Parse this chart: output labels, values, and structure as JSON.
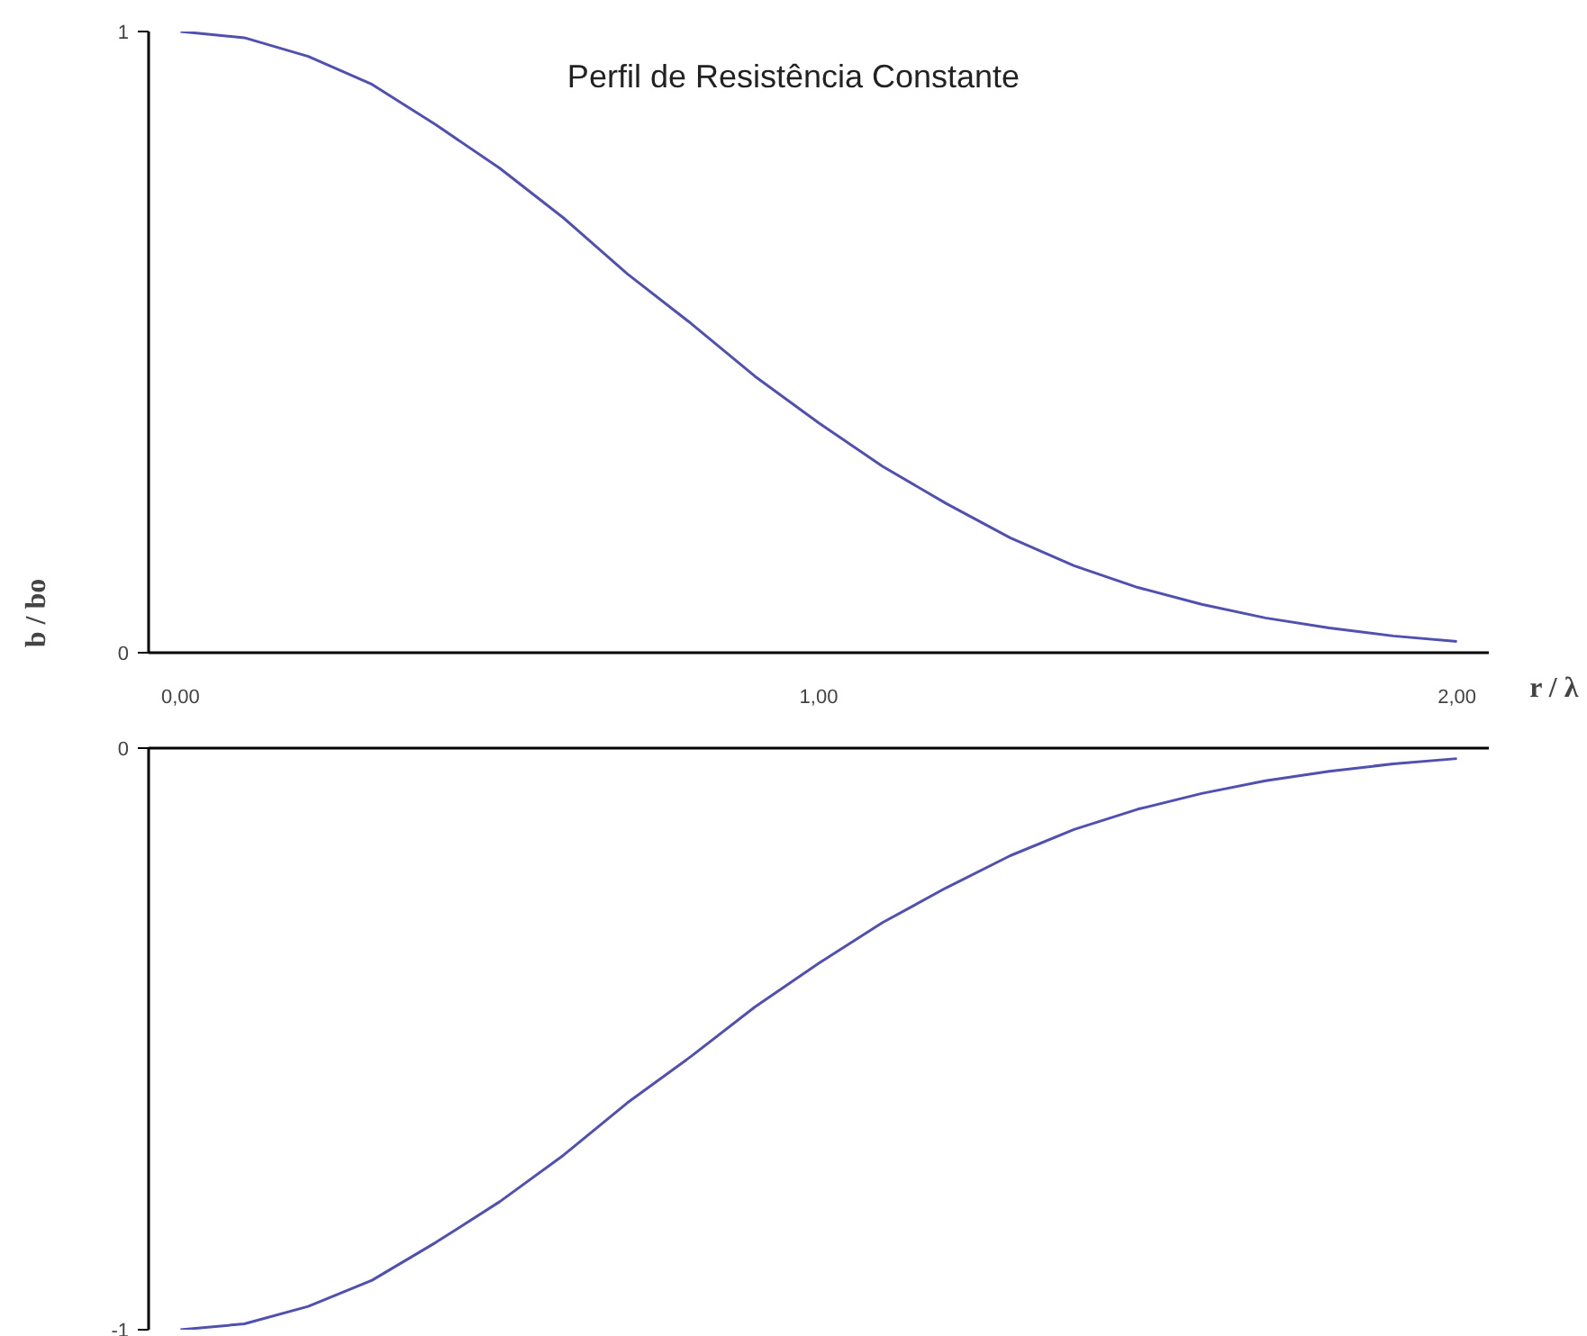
{
  "chart_data": [
    {
      "type": "line",
      "title": "Perfil de Resistência Constante",
      "xlabel": "r / λ",
      "ylabel": "b / bo",
      "x": [
        0,
        0.1,
        0.2,
        0.3,
        0.4,
        0.5,
        0.6,
        0.7,
        0.8,
        0.9,
        1.0,
        1.1,
        1.2,
        1.3,
        1.4,
        1.5,
        1.6,
        1.7,
        1.8,
        1.9,
        2.0
      ],
      "series": [
        {
          "color": "#5050b0",
          "values": [
            1,
            0.99,
            0.96,
            0.915,
            0.85,
            0.78,
            0.7,
            0.61,
            0.53,
            0.445,
            0.37,
            0.3,
            0.24,
            0.185,
            0.14,
            0.105,
            0.078,
            0.056,
            0.04,
            0.027,
            0.018
          ]
        }
      ],
      "xlim": [
        -0.05,
        2.05
      ],
      "xticks": [
        {
          "value": 0,
          "label": "0,00"
        },
        {
          "value": 1,
          "label": "1,00"
        },
        {
          "value": 2,
          "label": "2,00"
        }
      ],
      "ylim": [
        0,
        1
      ],
      "yticks": [
        0,
        1
      ],
      "grid": false,
      "marker": "none",
      "line_style": "solid"
    },
    {
      "type": "line",
      "x": [
        0,
        0.1,
        0.2,
        0.3,
        0.4,
        0.5,
        0.6,
        0.7,
        0.8,
        0.9,
        1.0,
        1.1,
        1.2,
        1.3,
        1.4,
        1.5,
        1.6,
        1.7,
        1.8,
        1.9,
        2.0
      ],
      "series": [
        {
          "color": "#5050b0",
          "values": [
            -1,
            -0.99,
            -0.96,
            -0.915,
            -0.85,
            -0.78,
            -0.7,
            -0.61,
            -0.53,
            -0.445,
            -0.37,
            -0.3,
            -0.24,
            -0.185,
            -0.14,
            -0.105,
            -0.078,
            -0.056,
            -0.04,
            -0.027,
            -0.018
          ]
        }
      ],
      "xlim": [
        -0.05,
        2.05
      ],
      "ylim": [
        -1,
        0
      ],
      "yticks": [
        -1,
        0
      ],
      "tick_labels": "y",
      "grid": false,
      "marker": "none",
      "line_style": "solid"
    }
  ]
}
